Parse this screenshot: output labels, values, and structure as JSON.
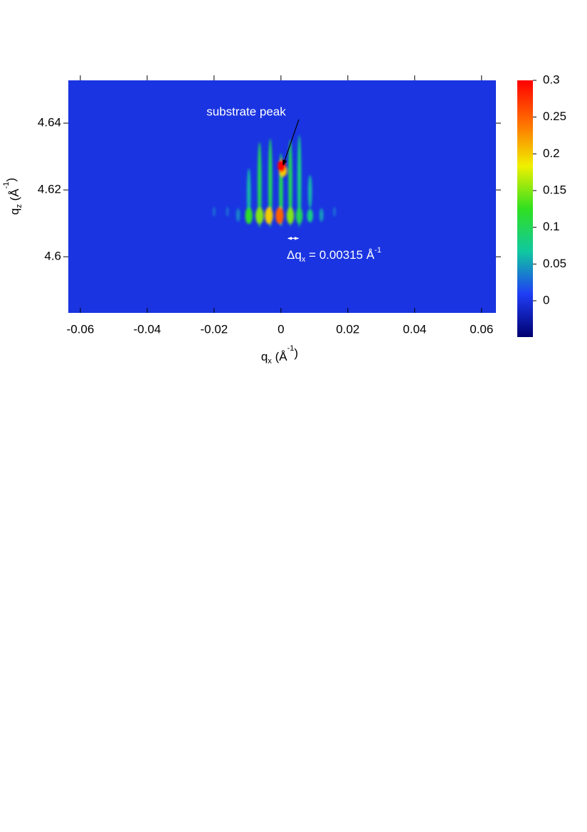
{
  "chart_data": {
    "type": "heatmap",
    "xlabel": [
      "q",
      "x",
      " (Å",
      "-1",
      ")"
    ],
    "ylabel": [
      "q",
      "z",
      " (Å",
      "-1",
      ")"
    ],
    "xlim": [
      -0.0636,
      0.0643
    ],
    "ylim": [
      4.5832,
      4.6528
    ],
    "xticks": [
      -0.06,
      -0.04,
      -0.02,
      0,
      0.02,
      0.04,
      0.06
    ],
    "yticks": [
      4.6,
      4.62,
      4.64
    ],
    "clim": [
      -0.0494,
      0.3
    ],
    "cticks": [
      0,
      0.05,
      0.1,
      0.15,
      0.2,
      0.25,
      0.3
    ],
    "colormap": [
      "#000070",
      "#1f3df5",
      "#10c8a0",
      "#30e020",
      "#f0f000",
      "#ff7000",
      "#ff0000"
    ],
    "background_value": 0,
    "spots": [
      {
        "x": -0.0096,
        "y": 4.6185,
        "rx": 0.0006,
        "ry": 0.008,
        "value": 0.06
      },
      {
        "x": -0.0064,
        "y": 4.6215,
        "rx": 0.0006,
        "ry": 0.0128,
        "value": 0.1
      },
      {
        "x": -0.0032,
        "y": 4.6221,
        "rx": 0.0006,
        "ry": 0.0133,
        "value": 0.1
      },
      {
        "x": 0,
        "y": 4.62,
        "rx": 0.0006,
        "ry": 0.011,
        "value": 0.1
      },
      {
        "x": 0.0028,
        "y": 4.6221,
        "rx": 0.0006,
        "ry": 0.013,
        "value": 0.1
      },
      {
        "x": 0.0055,
        "y": 4.6226,
        "rx": 0.0006,
        "ry": 0.0138,
        "value": 0.08
      },
      {
        "x": 0.0087,
        "y": 4.6195,
        "rx": 0.0006,
        "ry": 0.005,
        "value": 0.06
      },
      {
        "x": -0.02,
        "y": 4.6135,
        "rx": 0.0004,
        "ry": 0.0015,
        "value": 0.03
      },
      {
        "x": -0.016,
        "y": 4.6135,
        "rx": 0.0004,
        "ry": 0.0015,
        "value": 0.03
      },
      {
        "x": -0.0128,
        "y": 4.6125,
        "rx": 0.0006,
        "ry": 0.002,
        "value": 0.04
      },
      {
        "x": -0.0096,
        "y": 4.6123,
        "rx": 0.0011,
        "ry": 0.0025,
        "value": 0.12
      },
      {
        "x": -0.0064,
        "y": 4.6123,
        "rx": 0.0012,
        "ry": 0.0025,
        "value": 0.15
      },
      {
        "x": -0.0036,
        "y": 4.6123,
        "rx": 0.0012,
        "ry": 0.0025,
        "value": 0.2
      },
      {
        "x": -0.0004,
        "y": 4.6123,
        "rx": 0.0012,
        "ry": 0.0025,
        "value": 0.25
      },
      {
        "x": 0.0028,
        "y": 4.6123,
        "rx": 0.0011,
        "ry": 0.0025,
        "value": 0.15
      },
      {
        "x": 0.0055,
        "y": 4.6123,
        "rx": 0.001,
        "ry": 0.0025,
        "value": 0.1
      },
      {
        "x": 0.0087,
        "y": 4.6123,
        "rx": 0.0009,
        "ry": 0.002,
        "value": 0.08
      },
      {
        "x": 0.0121,
        "y": 4.6125,
        "rx": 0.0006,
        "ry": 0.002,
        "value": 0.05
      },
      {
        "x": 0.016,
        "y": 4.6135,
        "rx": 0.0004,
        "ry": 0.0015,
        "value": 0.03
      },
      {
        "x": 0.0006,
        "y": 4.6258,
        "rx": 0.0012,
        "ry": 0.0018,
        "value": 0.2
      },
      {
        "x": 0.0002,
        "y": 4.6272,
        "rx": 0.0012,
        "ry": 0.0018,
        "value": 0.3
      }
    ],
    "annotations": [
      {
        "text": "substrate peak",
        "xy": [
          0.00064,
          4.6274
        ],
        "xytext": [
          -0.0104,
          4.6432
        ]
      }
    ],
    "delta_annotation": {
      "x": 0.0021,
      "y": 4.6055,
      "value": 0.00315,
      "before": [
        "Δq",
        "x",
        " = "
      ],
      "after": [
        " Å",
        "-1"
      ]
    }
  }
}
